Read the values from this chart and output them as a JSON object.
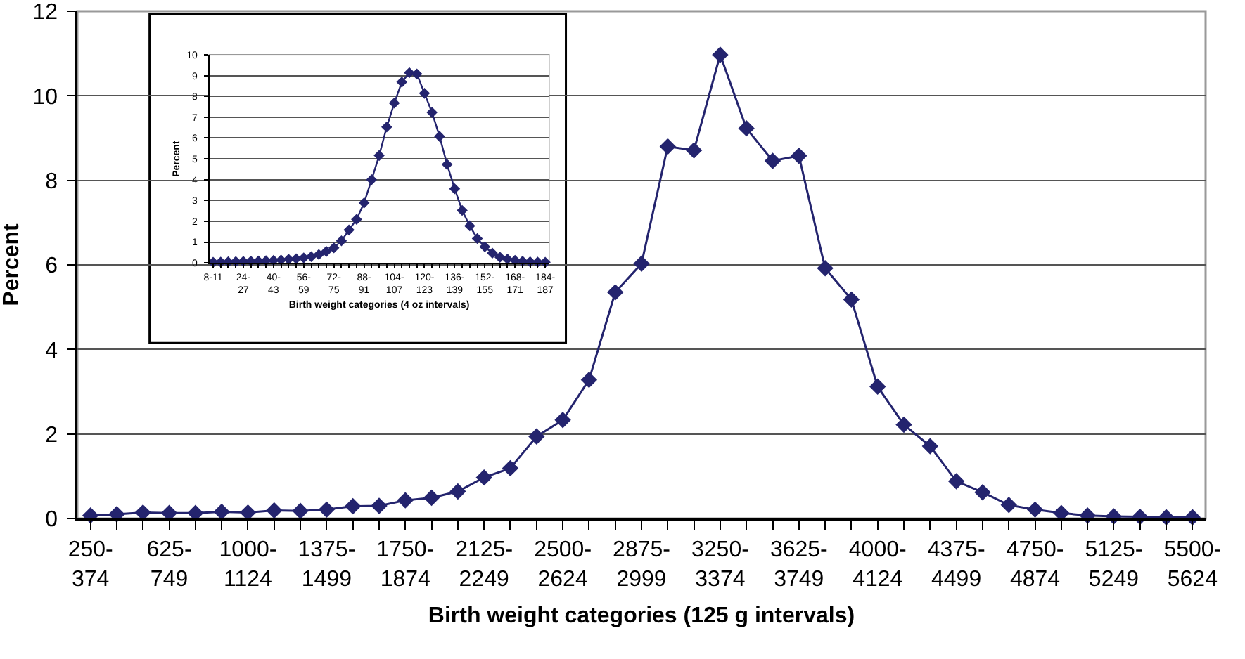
{
  "chart_data": [
    {
      "type": "line",
      "xlabel": "Birth weight categories (125 g intervals)",
      "ylabel": "Percent",
      "categories": [
        "250-374",
        null,
        null,
        "625-749",
        null,
        null,
        "1000-1124",
        null,
        null,
        "1375-1499",
        null,
        null,
        "1750-1874",
        null,
        null,
        "2125-2249",
        null,
        null,
        "2500-2624",
        null,
        null,
        "2875-2999",
        null,
        null,
        "3250-3374",
        null,
        null,
        "3625-3749",
        null,
        null,
        "4000-4124",
        null,
        null,
        "4375-4499",
        null,
        null,
        "4750-4874",
        null,
        null,
        "5125-5249",
        null,
        null,
        "5500-5624"
      ],
      "series": [
        {
          "color": "#24246e",
          "values": [
            0.07,
            0.1,
            0.14,
            0.13,
            0.13,
            0.16,
            0.14,
            0.19,
            0.18,
            0.21,
            0.29,
            0.3,
            0.43,
            0.49,
            0.64,
            0.97,
            1.19,
            1.94,
            2.33,
            3.28,
            5.35,
            6.03,
            8.8,
            8.71,
            10.97,
            9.23,
            8.46,
            8.58,
            5.92,
            5.18,
            3.12,
            2.22,
            1.71,
            0.88,
            0.62,
            0.32,
            0.21,
            0.13,
            0.07,
            0.05,
            0.04,
            0.03,
            0.03
          ]
        }
      ],
      "ylim": [
        0,
        12
      ],
      "yticks": [
        0,
        2,
        4,
        6,
        8,
        10,
        12
      ],
      "grid": "y",
      "marker": "diamond",
      "line_style": "solid"
    },
    {
      "type": "line",
      "xlabel": "Birth weight categories (4 oz intervals)",
      "ylabel": "Percent",
      "categories": [
        "8-11",
        null,
        null,
        null,
        "24-27",
        null,
        null,
        null,
        "40-43",
        null,
        null,
        null,
        "56-59",
        null,
        null,
        null,
        "72-75",
        null,
        null,
        null,
        "88-91",
        null,
        null,
        null,
        "104-107",
        null,
        null,
        null,
        "120-123",
        null,
        null,
        null,
        "136-139",
        null,
        null,
        null,
        "152-155",
        null,
        null,
        null,
        "168-171",
        null,
        null,
        null,
        "184-187"
      ],
      "series": [
        {
          "color": "#24246e",
          "values": [
            0.03,
            0.04,
            0.05,
            0.06,
            0.07,
            0.08,
            0.09,
            0.1,
            0.12,
            0.14,
            0.17,
            0.2,
            0.24,
            0.3,
            0.4,
            0.55,
            0.72,
            1.06,
            1.58,
            2.09,
            2.88,
            4.0,
            5.16,
            6.53,
            7.68,
            8.69,
            9.14,
            9.08,
            8.15,
            7.23,
            6.08,
            4.73,
            3.56,
            2.52,
            1.78,
            1.17,
            0.77,
            0.47,
            0.27,
            0.18,
            0.12,
            0.08,
            0.05,
            0.04,
            0.03
          ]
        }
      ],
      "ylim": [
        0,
        10
      ],
      "yticks": [
        0,
        1,
        2,
        3,
        4,
        5,
        6,
        7,
        8,
        9,
        10
      ],
      "grid": "y",
      "marker": "diamond",
      "line_style": "solid"
    }
  ]
}
